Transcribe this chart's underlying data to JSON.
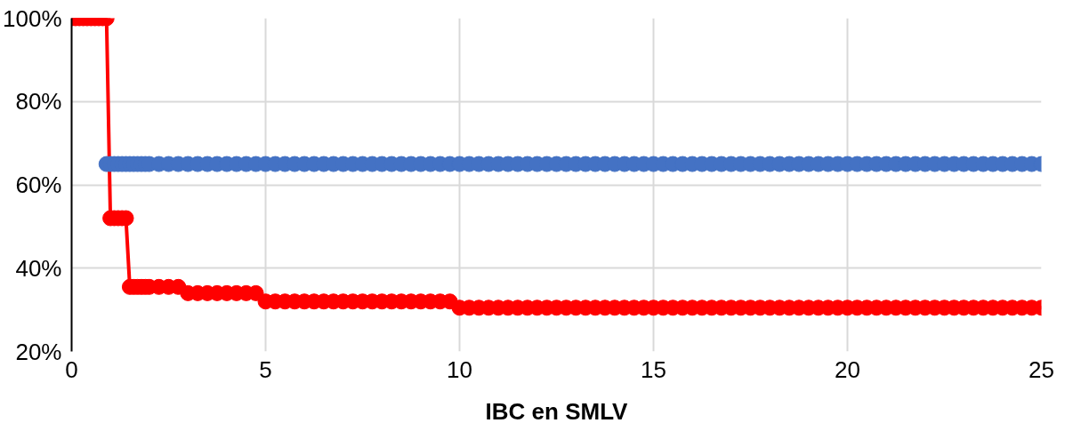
{
  "chart_data": {
    "type": "line",
    "xlabel": "IBC en SMLV",
    "x": [
      0,
      0.1,
      0.2,
      0.3,
      0.4,
      0.5,
      0.6,
      0.7,
      0.8,
      0.9,
      1,
      1.1,
      1.2,
      1.3,
      1.4,
      1.5,
      1.6,
      1.7,
      1.8,
      1.9,
      2,
      2.25,
      2.5,
      2.75,
      3,
      3.25,
      3.5,
      3.75,
      4,
      4.25,
      4.5,
      4.75,
      5,
      5.25,
      5.5,
      5.75,
      6,
      6.25,
      6.5,
      6.75,
      7,
      7.25,
      7.5,
      7.75,
      8,
      8.25,
      8.5,
      8.75,
      9,
      9.25,
      9.5,
      9.75,
      10,
      10.25,
      10.5,
      10.75,
      11,
      11.25,
      11.5,
      11.75,
      12,
      12.25,
      12.5,
      12.75,
      13,
      13.25,
      13.5,
      13.75,
      14,
      14.25,
      14.5,
      14.75,
      15,
      15.25,
      15.5,
      15.75,
      16,
      16.25,
      16.5,
      16.75,
      17,
      17.25,
      17.5,
      17.75,
      18,
      18.25,
      18.5,
      18.75,
      19,
      19.25,
      19.5,
      19.75,
      20,
      20.25,
      20.5,
      20.75,
      21,
      21.25,
      21.5,
      21.75,
      22,
      22.25,
      22.5,
      22.75,
      23,
      23.25,
      23.5,
      23.75,
      24,
      24.25,
      24.5,
      24.75,
      25
    ],
    "series": [
      {
        "type": "scatter",
        "color": "#4472c4",
        "values": [
          null,
          null,
          null,
          null,
          null,
          null,
          null,
          null,
          null,
          65,
          65,
          65,
          65,
          65,
          65,
          65,
          65,
          65,
          65,
          65,
          65,
          65,
          65,
          65,
          65,
          65,
          65,
          65,
          65,
          65,
          65,
          65,
          65,
          65,
          65,
          65,
          65,
          65,
          65,
          65,
          65,
          65,
          65,
          65,
          65,
          65,
          65,
          65,
          65,
          65,
          65,
          65,
          65,
          65,
          65,
          65,
          65,
          65,
          65,
          65,
          65,
          65,
          65,
          65,
          65,
          65,
          65,
          65,
          65,
          65,
          65,
          65,
          65,
          65,
          65,
          65,
          65,
          65,
          65,
          65,
          65,
          65,
          65,
          65,
          65,
          65,
          65,
          65,
          65,
          65,
          65,
          65,
          65,
          65,
          65,
          65,
          65,
          65,
          65,
          65,
          65,
          65,
          65,
          65,
          65,
          65,
          65,
          65,
          65,
          65,
          65,
          65,
          65
        ]
      },
      {
        "color": "#ff0000",
        "values": [
          100,
          100,
          100,
          100,
          100,
          100,
          100,
          100,
          100,
          100,
          52,
          52,
          52,
          52,
          52,
          35.5,
          35.5,
          35.5,
          35.5,
          35.5,
          35.5,
          35.5,
          35.5,
          35.5,
          34,
          34,
          34,
          34,
          34,
          34,
          34,
          34,
          32,
          32,
          32,
          32,
          32,
          32,
          32,
          32,
          32,
          32,
          32,
          32,
          32,
          32,
          32,
          32,
          32,
          32,
          32,
          32,
          30.5,
          30.5,
          30.5,
          30.5,
          30.5,
          30.5,
          30.5,
          30.5,
          30.5,
          30.5,
          30.5,
          30.5,
          30.5,
          30.5,
          30.5,
          30.5,
          30.5,
          30.5,
          30.5,
          30.5,
          30.5,
          30.5,
          30.5,
          30.5,
          30.5,
          30.5,
          30.5,
          30.5,
          30.5,
          30.5,
          30.5,
          30.5,
          30.5,
          30.5,
          30.5,
          30.5,
          30.5,
          30.5,
          30.5,
          30.5,
          30.5,
          30.5,
          30.5,
          30.5,
          30.5,
          30.5,
          30.5,
          30.5,
          30.5,
          30.5,
          30.5,
          30.5,
          30.5,
          30.5,
          30.5,
          30.5,
          30.5,
          30.5,
          30.5,
          30.5,
          30.5
        ]
      }
    ],
    "xlim": [
      0,
      25
    ],
    "xticks": [
      0,
      5,
      10,
      15,
      20,
      25
    ],
    "ylim": [
      20,
      100
    ],
    "yticks": [
      {
        "value": 20,
        "label": "20%"
      },
      {
        "value": 40,
        "label": "40%"
      },
      {
        "value": 60,
        "label": "60%"
      },
      {
        "value": 80,
        "label": "80%"
      },
      {
        "value": 100,
        "label": "100%"
      }
    ],
    "grid": true,
    "marker": "circle",
    "line_style": "solid"
  }
}
